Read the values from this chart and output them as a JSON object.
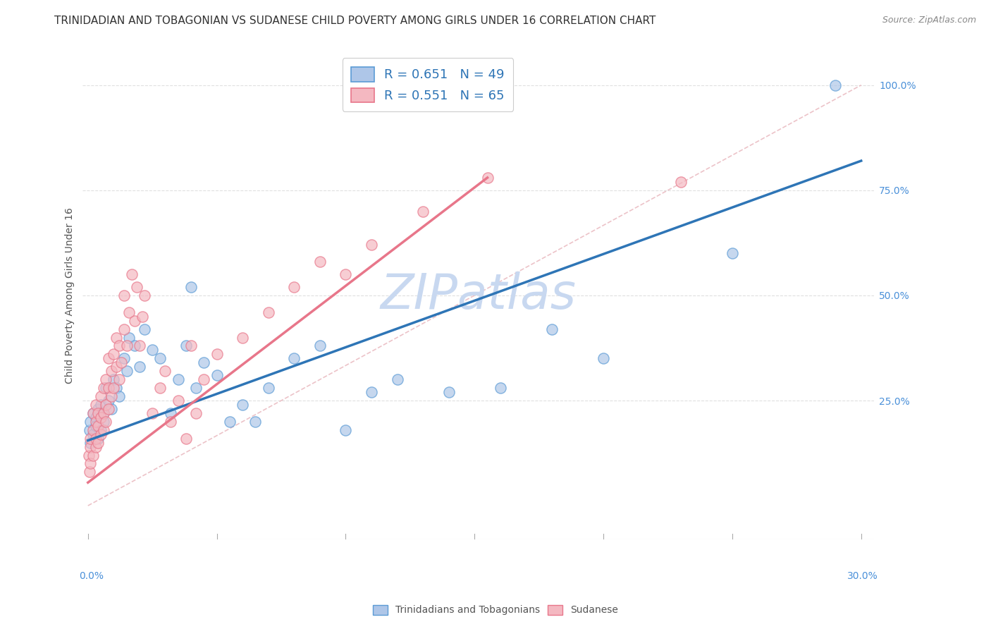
{
  "title": "TRINIDADIAN AND TOBAGONIAN VS SUDANESE CHILD POVERTY AMONG GIRLS UNDER 16 CORRELATION CHART",
  "source": "Source: ZipAtlas.com",
  "xlabel_bottom_left": "0.0%",
  "xlabel_bottom_right": "30.0%",
  "ylabel": "Child Poverty Among Girls Under 16",
  "ytick_labels": [
    "25.0%",
    "50.0%",
    "75.0%",
    "100.0%"
  ],
  "ytick_values": [
    0.25,
    0.5,
    0.75,
    1.0
  ],
  "xlim": [
    -0.002,
    0.305
  ],
  "ylim": [
    -0.08,
    1.08
  ],
  "legend_entries": [
    {
      "label": "R = 0.651   N = 49",
      "color": "#aec6e8"
    },
    {
      "label": "R = 0.551   N = 65",
      "color": "#f4b8c1"
    }
  ],
  "watermark": "ZIPatlas",
  "watermark_color": "#c8d8f0",
  "series_blue": {
    "name": "Trinidadians and Tobagonians",
    "color": "#aec6e8",
    "edge_color": "#5b9bd5",
    "trend_color": "#2e75b6",
    "trend_x0": 0.0,
    "trend_y0": 0.155,
    "trend_x1": 0.3,
    "trend_y1": 0.82
  },
  "series_pink": {
    "name": "Sudanese",
    "color": "#f4b8c1",
    "edge_color": "#e8768a",
    "trend_color": "#e8768a",
    "trend_x0": 0.0,
    "trend_y0": 0.055,
    "trend_x1": 0.155,
    "trend_y1": 0.78
  },
  "blue_x": [
    0.0005,
    0.001,
    0.001,
    0.002,
    0.002,
    0.003,
    0.003,
    0.004,
    0.004,
    0.005,
    0.005,
    0.006,
    0.006,
    0.007,
    0.008,
    0.009,
    0.01,
    0.011,
    0.012,
    0.014,
    0.015,
    0.016,
    0.018,
    0.02,
    0.022,
    0.025,
    0.028,
    0.032,
    0.035,
    0.038,
    0.04,
    0.042,
    0.045,
    0.05,
    0.055,
    0.06,
    0.065,
    0.07,
    0.08,
    0.09,
    0.1,
    0.11,
    0.12,
    0.14,
    0.16,
    0.18,
    0.2,
    0.25,
    0.29
  ],
  "blue_y": [
    0.18,
    0.2,
    0.15,
    0.22,
    0.17,
    0.21,
    0.19,
    0.23,
    0.16,
    0.24,
    0.18,
    0.22,
    0.2,
    0.28,
    0.25,
    0.23,
    0.3,
    0.28,
    0.26,
    0.35,
    0.32,
    0.4,
    0.38,
    0.33,
    0.42,
    0.37,
    0.35,
    0.22,
    0.3,
    0.38,
    0.52,
    0.28,
    0.34,
    0.31,
    0.2,
    0.24,
    0.2,
    0.28,
    0.35,
    0.38,
    0.18,
    0.27,
    0.3,
    0.27,
    0.28,
    0.42,
    0.35,
    0.6,
    1.0
  ],
  "pink_x": [
    0.0003,
    0.0005,
    0.001,
    0.001,
    0.001,
    0.002,
    0.002,
    0.002,
    0.003,
    0.003,
    0.003,
    0.003,
    0.004,
    0.004,
    0.004,
    0.005,
    0.005,
    0.005,
    0.006,
    0.006,
    0.006,
    0.007,
    0.007,
    0.007,
    0.008,
    0.008,
    0.008,
    0.009,
    0.009,
    0.01,
    0.01,
    0.011,
    0.011,
    0.012,
    0.012,
    0.013,
    0.014,
    0.014,
    0.015,
    0.016,
    0.017,
    0.018,
    0.019,
    0.02,
    0.021,
    0.022,
    0.025,
    0.028,
    0.03,
    0.032,
    0.035,
    0.038,
    0.04,
    0.042,
    0.045,
    0.05,
    0.06,
    0.07,
    0.08,
    0.09,
    0.1,
    0.11,
    0.13,
    0.155,
    0.23
  ],
  "pink_y": [
    0.12,
    0.08,
    0.14,
    0.1,
    0.16,
    0.12,
    0.18,
    0.22,
    0.14,
    0.16,
    0.2,
    0.24,
    0.15,
    0.19,
    0.22,
    0.17,
    0.21,
    0.26,
    0.18,
    0.22,
    0.28,
    0.2,
    0.24,
    0.3,
    0.23,
    0.28,
    0.35,
    0.26,
    0.32,
    0.28,
    0.36,
    0.33,
    0.4,
    0.3,
    0.38,
    0.34,
    0.42,
    0.5,
    0.38,
    0.46,
    0.55,
    0.44,
    0.52,
    0.38,
    0.45,
    0.5,
    0.22,
    0.28,
    0.32,
    0.2,
    0.25,
    0.16,
    0.38,
    0.22,
    0.3,
    0.36,
    0.4,
    0.46,
    0.52,
    0.58,
    0.55,
    0.62,
    0.7,
    0.78,
    0.77
  ],
  "ref_line_color": "#d0d0d0",
  "background_color": "#ffffff",
  "grid_color": "#e0e0e0",
  "title_fontsize": 11,
  "axis_label_fontsize": 10,
  "tick_fontsize": 10,
  "marker_size": 120
}
